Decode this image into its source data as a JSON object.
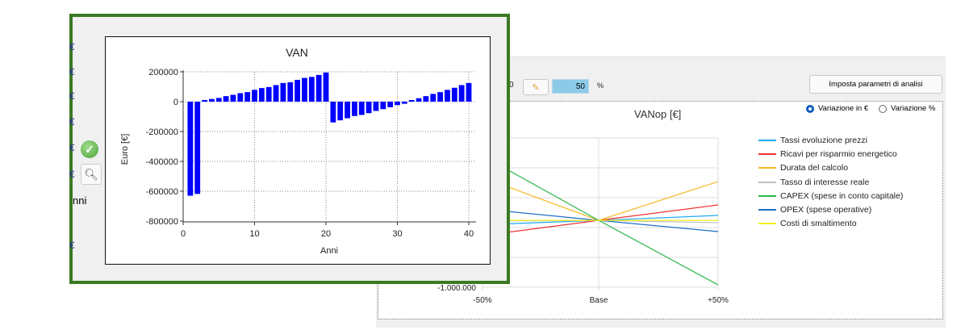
{
  "colors": {
    "frame_green": "#3b7a23",
    "bar_blue": "#0000ff",
    "input_blue": "#8ccbe8"
  },
  "right_panel": {
    "partial_value": "0",
    "icon_button": "paint-brush-icon",
    "percent_value": "50",
    "percent_unit": "%",
    "param_button_label": "Imposta parametri di analisi",
    "radio_options": [
      {
        "label": "Variazione in €",
        "selected": true
      },
      {
        "label": "Variazione %",
        "selected": false
      }
    ]
  },
  "left_panel": {
    "edge_glyphs": [
      "€",
      "€",
      "€",
      "€",
      "€",
      "€",
      "€"
    ],
    "partial_label": "nni",
    "check_icon": "check-circle-icon",
    "zoom_icon": "magnifier-icon"
  },
  "chart_data": [
    {
      "type": "bar",
      "title": "VAN",
      "xlabel": "Anni",
      "ylabel": "Euro [€]",
      "xlim": [
        0,
        41
      ],
      "ylim": [
        -800000,
        200000
      ],
      "xticks": [
        0,
        10,
        20,
        30,
        40
      ],
      "xtick_labels": [
        "0",
        "10",
        "20",
        "30",
        "40"
      ],
      "yticks": [
        200000,
        0,
        -200000,
        -400000,
        -600000,
        -800000
      ],
      "ytick_labels": [
        "200000",
        "0",
        "-200000",
        "-400000",
        "-600000",
        "-800000"
      ],
      "grid": true,
      "x": [
        1,
        2,
        3,
        4,
        5,
        6,
        7,
        8,
        9,
        10,
        11,
        12,
        13,
        14,
        15,
        16,
        17,
        18,
        19,
        20,
        21,
        22,
        23,
        24,
        25,
        26,
        27,
        28,
        29,
        30,
        31,
        32,
        33,
        34,
        35,
        36,
        37,
        38,
        39,
        40
      ],
      "values": [
        -630000,
        -618000,
        11000,
        18000,
        25000,
        37000,
        46000,
        57000,
        64000,
        79000,
        91000,
        98000,
        111000,
        125000,
        130000,
        146000,
        159000,
        166000,
        179000,
        195000,
        -139000,
        -125000,
        -111000,
        -96000,
        -89000,
        -77000,
        -62000,
        -50000,
        -37000,
        -23000,
        -14000,
        11000,
        23000,
        37000,
        52000,
        64000,
        79000,
        93000,
        111000,
        125000
      ]
    },
    {
      "type": "line",
      "title": "VANop [€]",
      "categories": [
        "-50%",
        "Base",
        "+50%"
      ],
      "yticks": [
        -1000000,
        -500000,
        0,
        500000,
        1000000,
        1500000
      ],
      "ytick_labels_visible": [
        "-1.000.000"
      ],
      "ylim": [
        -1000000,
        1500000
      ],
      "grid": true,
      "legend_position": "right",
      "series": [
        {
          "name": "Tassi evoluzione prezzi",
          "color": "#1eaaf0",
          "values": [
            47000,
            120000,
            203000
          ]
        },
        {
          "name": "Ricavi per risparmio energetico",
          "color": "#f03030",
          "values": [
            -135000,
            120000,
            378000
          ]
        },
        {
          "name": "Durata del calcolo",
          "color": "#f5b820",
          "values": [
            838000,
            120000,
            770000
          ]
        },
        {
          "name": "Tasso di interesse reale",
          "color": "#c0c0c0",
          "values": [
            108000,
            120000,
            81000
          ]
        },
        {
          "name": "CAPEX (spese in conto capitale)",
          "color": "#2ab84a",
          "values": [
            1200000,
            120000,
            -960000
          ]
        },
        {
          "name": "OPEX (spese operative)",
          "color": "#1e6ec8",
          "values": [
            311000,
            120000,
            -68000
          ]
        },
        {
          "name": "Costi di smaltimento",
          "color": "#f5f020",
          "values": [
            120000,
            120000,
            120000
          ]
        }
      ]
    }
  ]
}
